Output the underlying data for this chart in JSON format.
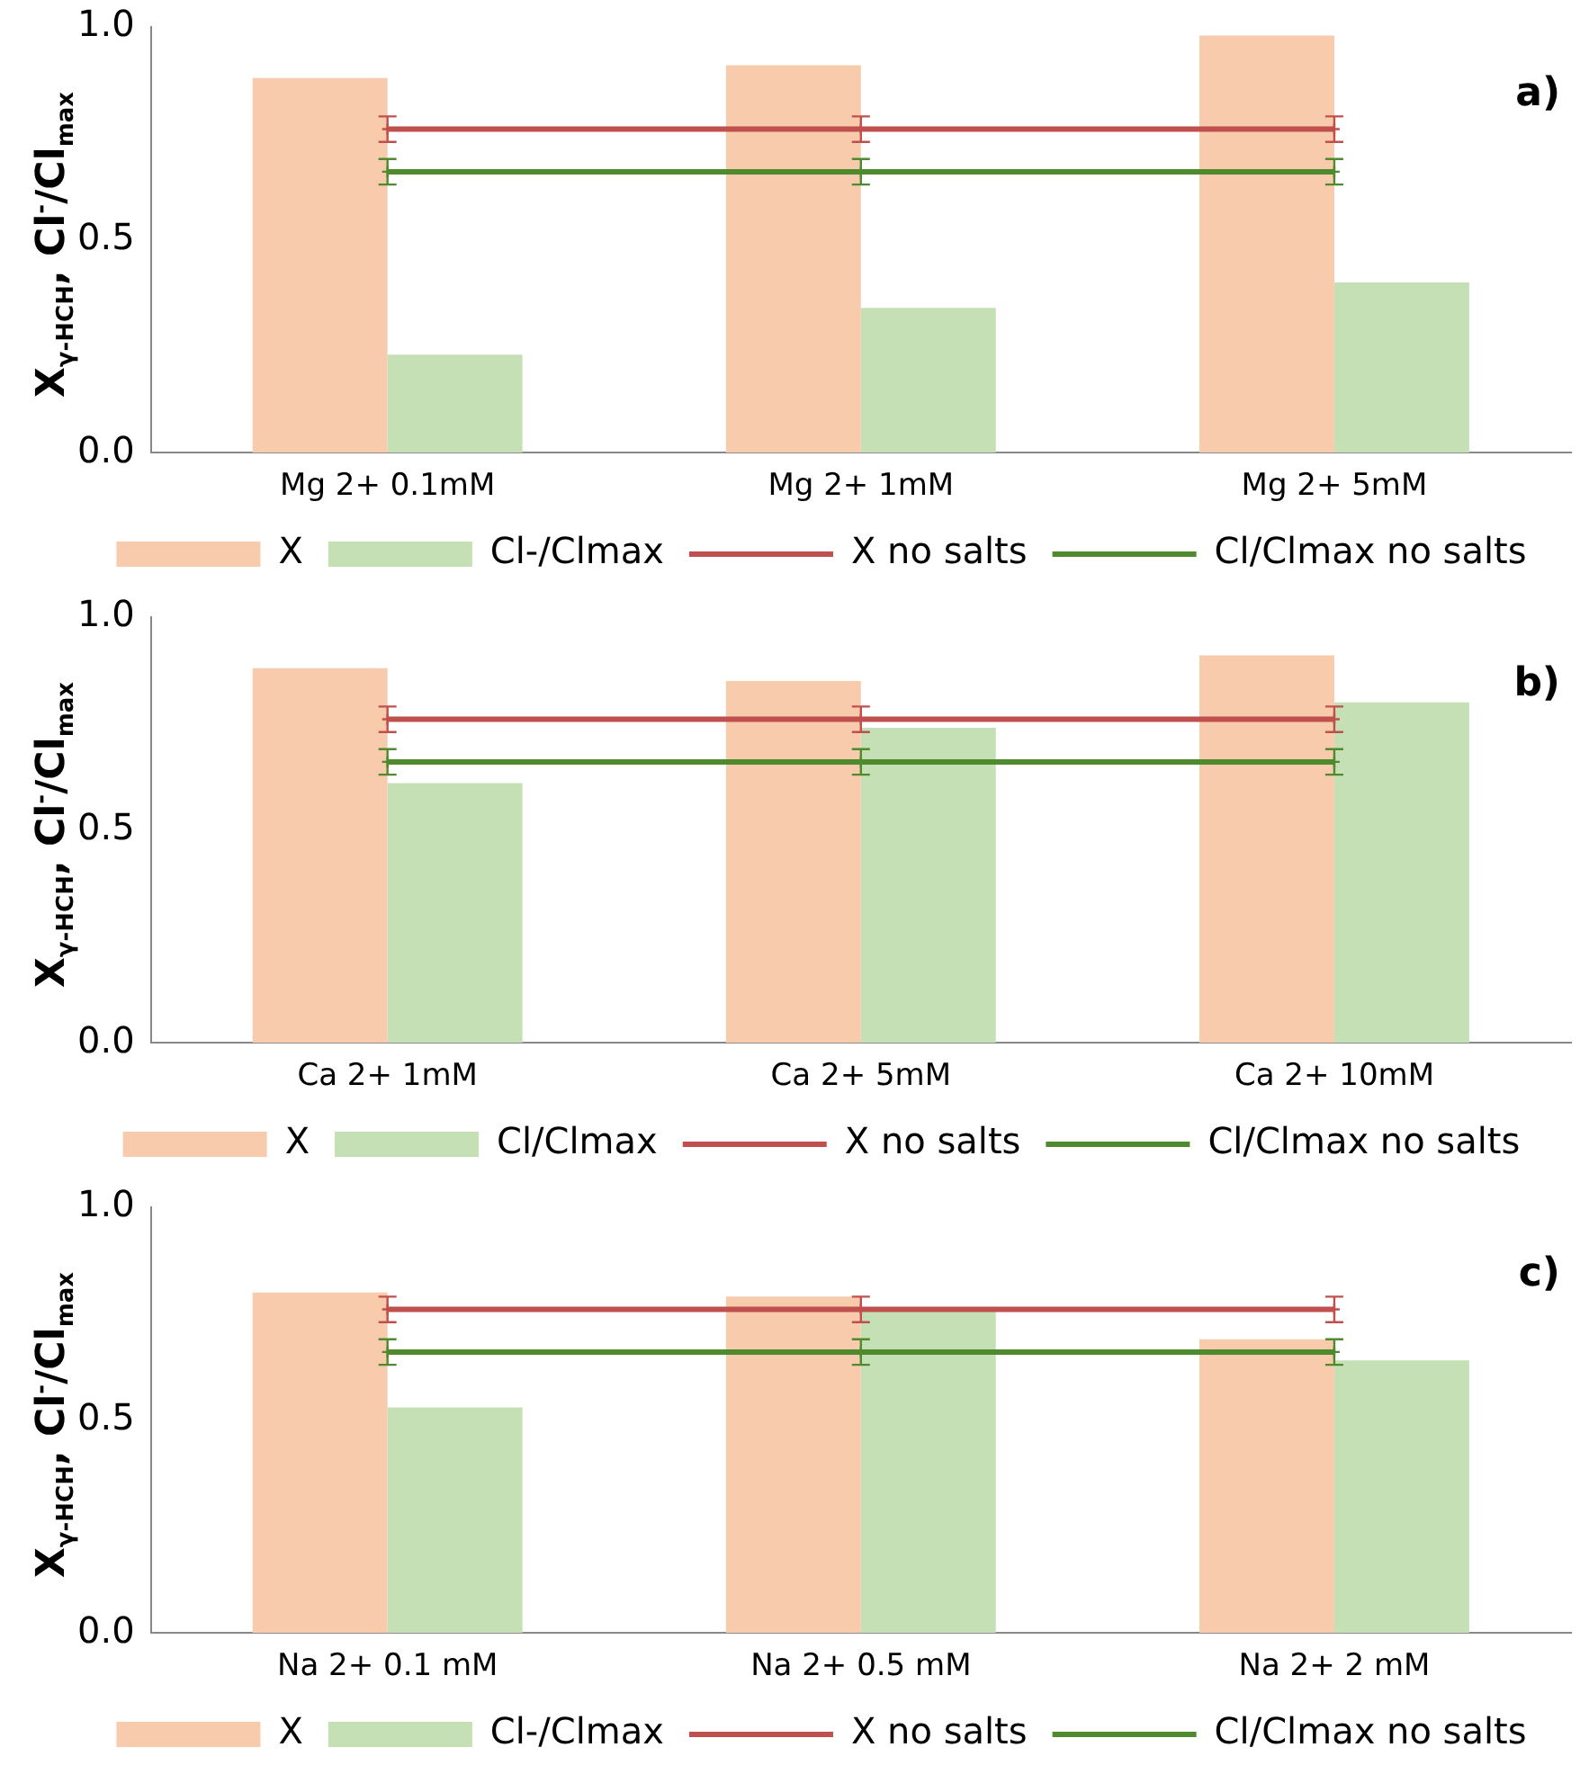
{
  "chart_data": [
    {
      "type": "bar",
      "ylabel": "X$_{γ-HCH}$, Cl$^{-}$/Cl$_{max}$",
      "categories": [
        "Mg 2+ 0.1mM",
        "Mg 2+ 1mM",
        "Mg 2+ 5mM"
      ],
      "ylim": [
        0,
        1
      ],
      "yticks": [
        {
          "value": 0,
          "label": "0.0"
        },
        {
          "value": 0.5,
          "label": "0.5"
        },
        {
          "value": 1,
          "label": "1.0"
        }
      ],
      "grid": false,
      "legend": "bottom",
      "marker": "cross",
      "annotations": [
        "a)"
      ],
      "series": [
        {
          "name": "X",
          "color": "#f8cbad",
          "values": [
            0.88,
            0.91,
            0.98
          ]
        },
        {
          "name": "Cl-/Clmax",
          "color": "#c5e0b4",
          "values": [
            0.23,
            0.34,
            0.4
          ]
        },
        {
          "name": "X no salts",
          "type": "line",
          "color": "#c0504d",
          "values": [
            0.76,
            0.76,
            0.76
          ],
          "errors": [
            0.03,
            0.03,
            0.03
          ]
        },
        {
          "name": "Cl/Clmax no salts",
          "type": "line",
          "color": "#4f8a2f",
          "values": [
            0.66,
            0.66,
            0.66
          ],
          "errors": [
            0.03,
            0.03,
            0.03
          ]
        }
      ]
    },
    {
      "type": "bar",
      "ylabel": "X$_{γ-HCH}$, Cl$^{-}$/Cl$_{max}$",
      "categories": [
        "Ca 2+ 1mM",
        "Ca 2+ 5mM",
        "Ca 2+ 10mM"
      ],
      "ylim": [
        0,
        1
      ],
      "yticks": [
        {
          "value": 0,
          "label": "0.0"
        },
        {
          "value": 0.5,
          "label": "0.5"
        },
        {
          "value": 1,
          "label": "1.0"
        }
      ],
      "grid": false,
      "legend": "bottom",
      "marker": "cross",
      "annotations": [
        "b)"
      ],
      "series": [
        {
          "name": "X",
          "color": "#f8cbad",
          "values": [
            0.88,
            0.85,
            0.91
          ]
        },
        {
          "name": "Cl/Clmax",
          "color": "#c5e0b4",
          "values": [
            0.61,
            0.74,
            0.8
          ]
        },
        {
          "name": "X no salts",
          "type": "line",
          "color": "#c0504d",
          "values": [
            0.76,
            0.76,
            0.76
          ],
          "errors": [
            0.03,
            0.03,
            0.03
          ]
        },
        {
          "name": "Cl/Clmax no salts",
          "type": "line",
          "color": "#4f8a2f",
          "values": [
            0.66,
            0.66,
            0.66
          ],
          "errors": [
            0.03,
            0.03,
            0.03
          ]
        }
      ]
    },
    {
      "type": "bar",
      "ylabel": "X$_{γ-HCH}$, Cl$^{-}$/Cl$_{max}$",
      "categories": [
        "Na 2+ 0.1 mM",
        "Na 2+ 0.5 mM",
        "Na 2+ 2 mM"
      ],
      "ylim": [
        0,
        1
      ],
      "yticks": [
        {
          "value": 0,
          "label": "0.0"
        },
        {
          "value": 0.5,
          "label": "0.5"
        },
        {
          "value": 1,
          "label": "1.0"
        }
      ],
      "grid": false,
      "legend": "bottom",
      "marker": "cross",
      "annotations": [
        "c)"
      ],
      "series": [
        {
          "name": "X",
          "color": "#f8cbad",
          "values": [
            0.8,
            0.79,
            0.69
          ]
        },
        {
          "name": "Cl-/Clmax",
          "color": "#c5e0b4",
          "values": [
            0.53,
            0.76,
            0.64
          ]
        },
        {
          "name": "X no salts",
          "type": "line",
          "color": "#c0504d",
          "values": [
            0.76,
            0.76,
            0.76
          ],
          "errors": [
            0.03,
            0.03,
            0.03
          ]
        },
        {
          "name": "Cl/Clmax no salts",
          "type": "line",
          "color": "#4f8a2f",
          "values": [
            0.66,
            0.66,
            0.66
          ],
          "errors": [
            0.03,
            0.03,
            0.03
          ]
        }
      ]
    }
  ]
}
